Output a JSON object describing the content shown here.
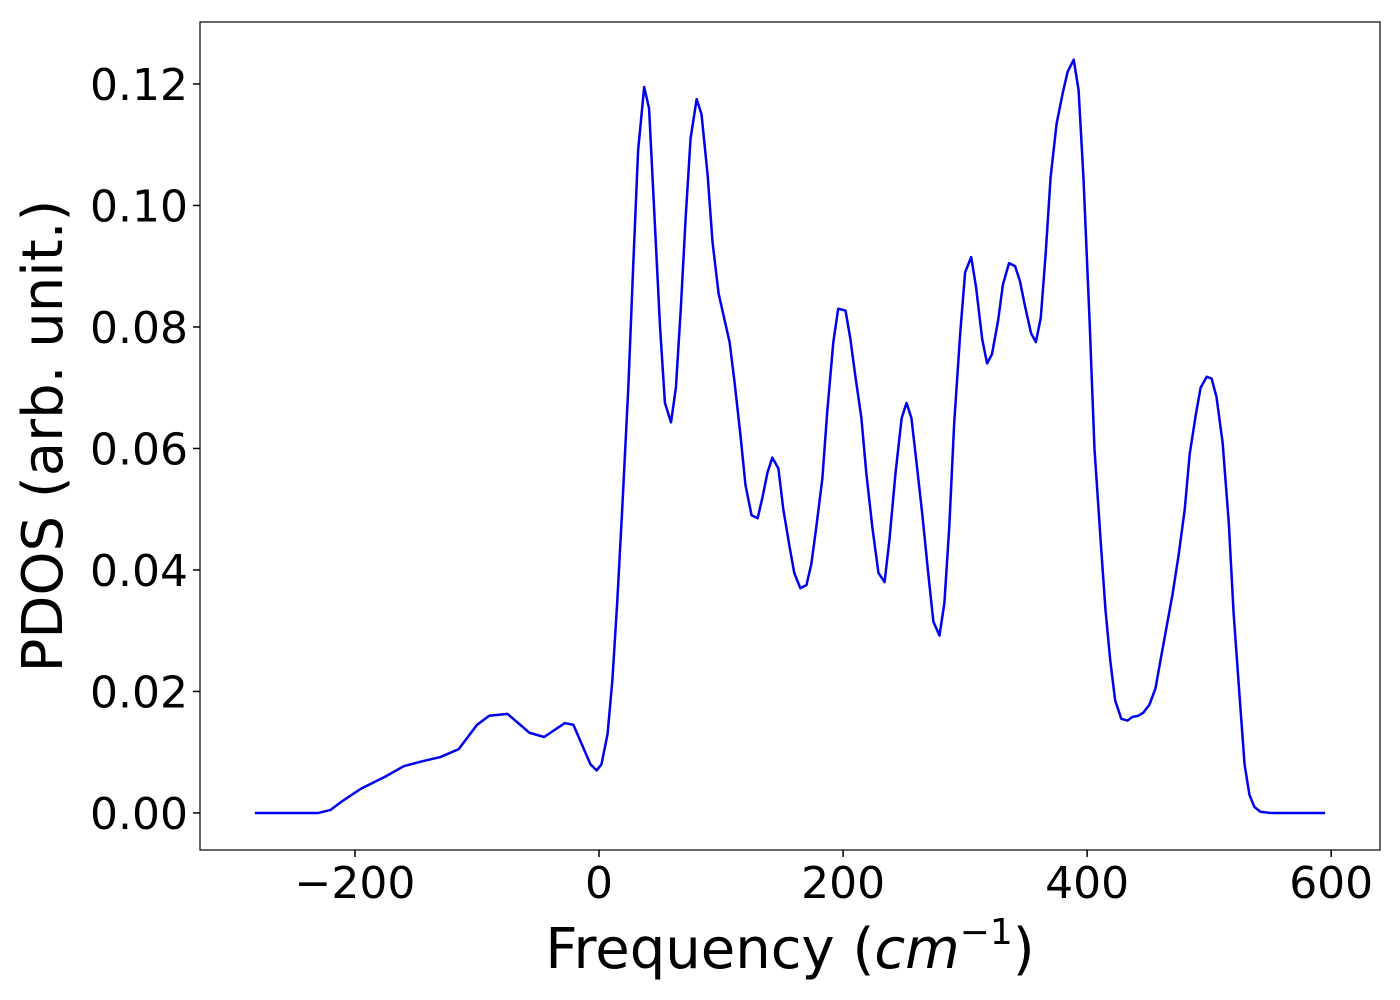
{
  "chart_data": {
    "type": "line",
    "xlabel": {
      "text": "Frequency (",
      "math": "cm",
      "sup": "−1",
      "close": ")"
    },
    "ylabel": "PDOS (arb. unit.)",
    "color": "#0000ee",
    "xlim": [
      -327,
      640
    ],
    "ylim": [
      -0.0061,
      0.1302
    ],
    "xticks": [
      {
        "value": -200,
        "label": "−200"
      },
      0,
      200,
      400,
      600
    ],
    "yticks": [
      {
        "value": 0,
        "label": "0.00"
      },
      {
        "value": 0.02,
        "label": "0.02"
      },
      {
        "value": 0.04,
        "label": "0.04"
      },
      {
        "value": 0.06,
        "label": "0.06"
      },
      {
        "value": 0.08,
        "label": "0.08"
      },
      {
        "value": 0.1,
        "label": "0.10"
      },
      {
        "value": 0.12,
        "label": "0.12"
      }
    ],
    "x": [
      -282,
      -230,
      -220,
      -210,
      -195,
      -175,
      -160,
      -145,
      -130,
      -115,
      -100,
      -90,
      -75,
      -57,
      -45,
      -28,
      -21,
      -7,
      -2,
      2,
      7,
      11,
      15,
      19,
      24,
      28,
      32,
      37,
      41,
      45,
      50,
      54,
      59,
      63,
      67,
      71,
      75,
      80,
      84,
      89,
      93,
      98,
      107,
      111,
      116,
      120,
      125,
      130,
      134,
      138,
      142,
      147,
      151,
      156,
      160,
      165,
      170,
      174,
      178,
      183,
      187,
      192,
      196,
      202,
      206,
      210,
      215,
      219,
      224,
      229,
      234,
      238,
      243,
      248,
      252,
      256,
      260,
      265,
      270,
      274,
      279,
      283,
      287,
      291,
      296,
      300,
      305,
      309,
      314,
      318,
      322,
      327,
      331,
      336,
      341,
      345,
      349,
      354,
      358,
      362,
      366,
      370,
      375,
      380,
      384,
      389,
      393,
      397,
      402,
      406,
      411,
      415,
      419,
      423,
      428,
      433,
      437,
      442,
      446,
      451,
      456,
      460,
      465,
      470,
      475,
      480,
      484,
      489,
      493,
      498,
      502,
      506,
      511,
      516,
      520,
      525,
      529,
      533,
      537,
      542,
      550,
      595
    ],
    "values": [
      0,
      0,
      0.0005,
      0.002,
      0.004,
      0.006,
      0.0077,
      0.0085,
      0.0092,
      0.0105,
      0.0145,
      0.016,
      0.0163,
      0.0132,
      0.0125,
      0.0148,
      0.0145,
      0.008,
      0.007,
      0.008,
      0.013,
      0.022,
      0.035,
      0.05,
      0.07,
      0.09,
      0.109,
      0.1195,
      0.116,
      0.1,
      0.08,
      0.0675,
      0.0643,
      0.07,
      0.083,
      0.098,
      0.111,
      0.1175,
      0.115,
      0.105,
      0.094,
      0.0855,
      0.0775,
      0.071,
      0.062,
      0.054,
      0.049,
      0.0485,
      0.052,
      0.056,
      0.0585,
      0.0567,
      0.05,
      0.044,
      0.0395,
      0.037,
      0.0375,
      0.041,
      0.047,
      0.055,
      0.066,
      0.0775,
      0.083,
      0.0827,
      0.078,
      0.072,
      0.065,
      0.056,
      0.047,
      0.0395,
      0.038,
      0.045,
      0.056,
      0.065,
      0.0675,
      0.065,
      0.058,
      0.049,
      0.039,
      0.0315,
      0.0292,
      0.0345,
      0.047,
      0.064,
      0.079,
      0.089,
      0.0915,
      0.0865,
      0.078,
      0.074,
      0.0755,
      0.081,
      0.087,
      0.0905,
      0.09,
      0.0875,
      0.0835,
      0.079,
      0.0775,
      0.0815,
      0.092,
      0.1045,
      0.1135,
      0.1185,
      0.122,
      0.124,
      0.119,
      0.1045,
      0.081,
      0.06,
      0.045,
      0.0335,
      0.025,
      0.0185,
      0.0155,
      0.0152,
      0.0158,
      0.016,
      0.0165,
      0.0178,
      0.0205,
      0.025,
      0.0305,
      0.036,
      0.0425,
      0.05,
      0.059,
      0.0655,
      0.07,
      0.0718,
      0.0715,
      0.0685,
      0.061,
      0.048,
      0.033,
      0.019,
      0.008,
      0.003,
      0.001,
      0.0002,
      0,
      0
    ]
  }
}
